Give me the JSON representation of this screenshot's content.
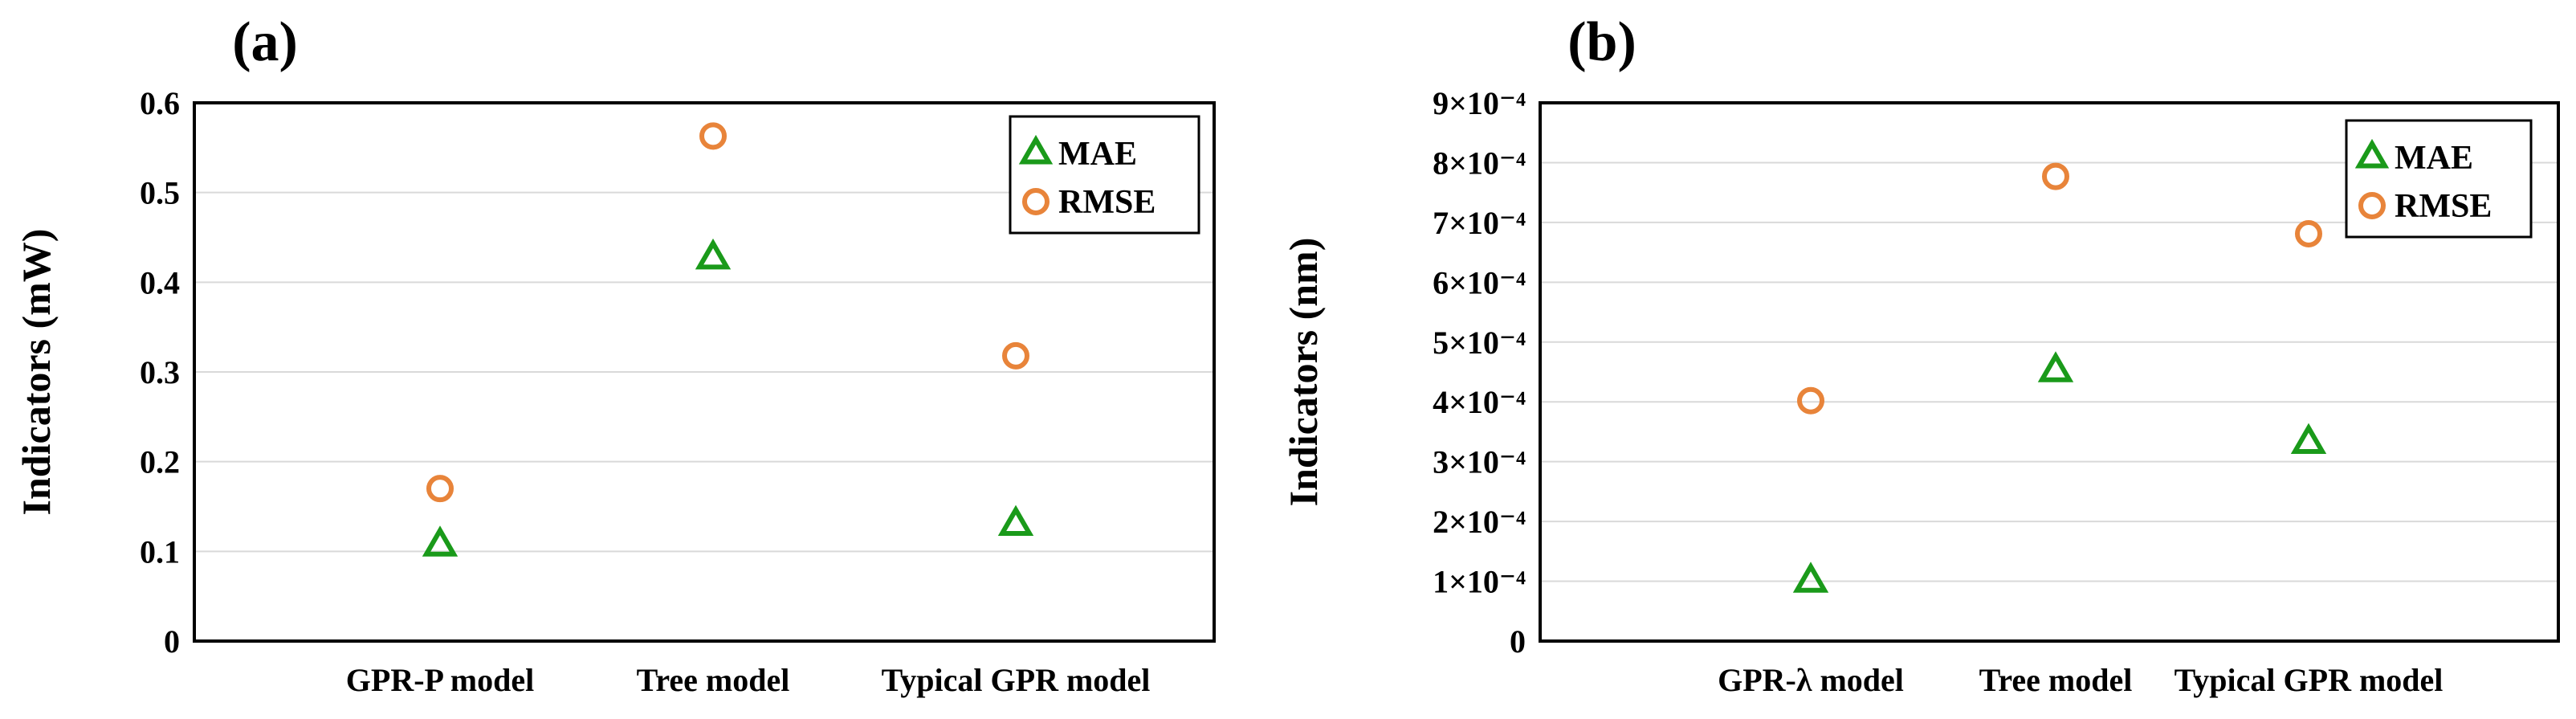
{
  "chart_data": [
    {
      "panel": "(a)",
      "type": "scatter",
      "ylabel": "Indicators (mW)",
      "ylim": [
        0,
        0.6
      ],
      "yticks": [
        "0",
        "0.1",
        "0.2",
        "0.3",
        "0.4",
        "0.5",
        "0.6"
      ],
      "categories": [
        "GPR-P model",
        "Tree model",
        "Typical GPR model"
      ],
      "grid": true,
      "legend_position": "top-right",
      "series": [
        {
          "name": "MAE",
          "marker": "triangle",
          "color": "#1a9a1a",
          "values": [
            0.107,
            0.427,
            0.13
          ]
        },
        {
          "name": "RMSE",
          "marker": "circle",
          "color": "#e8843a",
          "values": [
            0.17,
            0.563,
            0.318
          ]
        }
      ]
    },
    {
      "panel": "(b)",
      "type": "scatter",
      "ylabel": "Indicators (nm)",
      "ylim": [
        0,
        0.0009
      ],
      "yticks": [
        "0",
        "1×10⁻⁴",
        "2×10⁻⁴",
        "3×10⁻⁴",
        "4×10⁻⁴",
        "5×10⁻⁴",
        "6×10⁻⁴",
        "7×10⁻⁴",
        "8×10⁻⁴",
        "9×10⁻⁴"
      ],
      "categories": [
        "GPR-λ model",
        "Tree model",
        "Typical GPR model"
      ],
      "grid": true,
      "legend_position": "top-right",
      "series": [
        {
          "name": "MAE",
          "marker": "triangle",
          "color": "#1a9a1a",
          "values": [
            0.0001,
            0.000452,
            0.000332
          ]
        },
        {
          "name": "RMSE",
          "marker": "circle",
          "color": "#e8843a",
          "values": [
            0.000402,
            0.000777,
            0.000681
          ]
        }
      ]
    }
  ]
}
